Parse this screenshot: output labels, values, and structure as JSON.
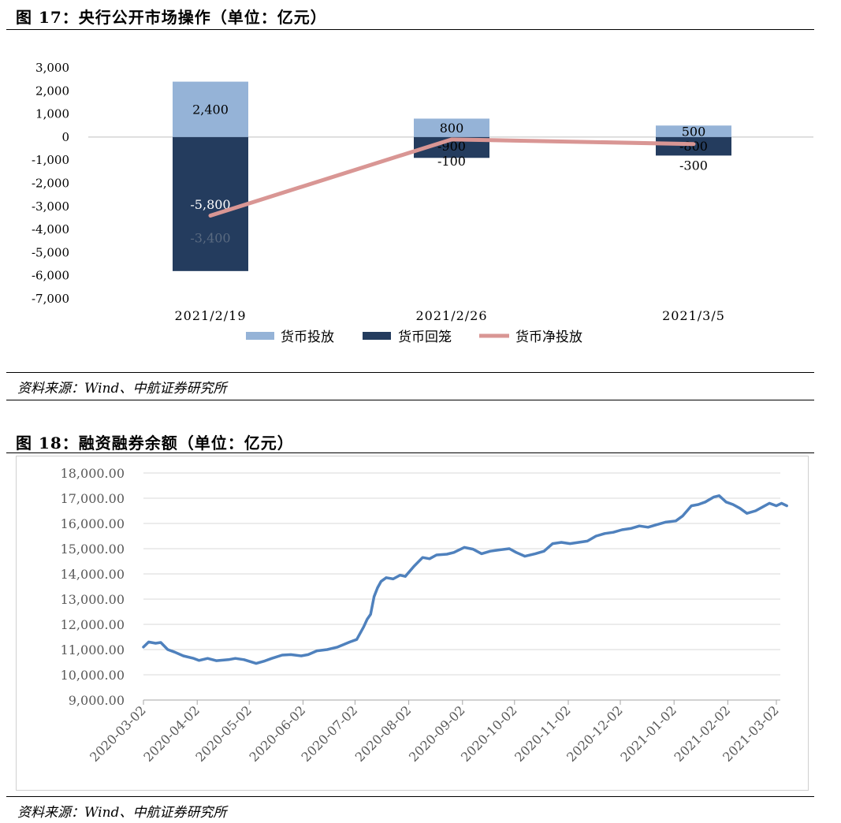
{
  "figure17": {
    "title": "图 17：央行公开市场操作（单位：亿元）",
    "source": "资料来源：Wind、中航证券研究所",
    "chart_data": {
      "type": "bar",
      "categories": [
        "2021/2/19",
        "2021/2/26",
        "2021/3/5"
      ],
      "series": [
        {
          "name": "货币投放",
          "values": [
            2400,
            800,
            500
          ],
          "labels": [
            "2,400",
            "800",
            "500"
          ],
          "color": "#95b3d7"
        },
        {
          "name": "货币回笼",
          "values": [
            -5800,
            -900,
            -800
          ],
          "labels": [
            "-5,800",
            "-900",
            "-800"
          ],
          "color": "#243c5e"
        },
        {
          "name": "货币净投放",
          "values": [
            -3400,
            -100,
            -300
          ],
          "labels": [
            "-3,400",
            "-100",
            "-300"
          ],
          "color": "#d99694",
          "kind": "line"
        }
      ],
      "yticks": [
        "3,000",
        "2,000",
        "1,000",
        "0",
        "-1,000",
        "-2,000",
        "-3,000",
        "-4,000",
        "-5,000",
        "-6,000",
        "-7,000"
      ],
      "ylim": [
        -7000,
        3000
      ],
      "legend_position": "bottom"
    }
  },
  "figure18": {
    "title": "图 18：融资融券余额（单位：亿元）",
    "source": "资料来源：Wind、中航证券研究所",
    "chart_data": {
      "type": "line",
      "series_color": "#4f81bd",
      "grid": true,
      "ylim": [
        9000,
        18000
      ],
      "yticks": [
        "18,000.00",
        "17,000.00",
        "16,000.00",
        "15,000.00",
        "14,000.00",
        "13,000.00",
        "12,000.00",
        "11,000.00",
        "10,000.00",
        "9,000.00"
      ],
      "xticks": [
        "2020-03-02",
        "2020-04-02",
        "2020-05-02",
        "2020-06-02",
        "2020-07-02",
        "2020-08-02",
        "2020-09-02",
        "2020-10-02",
        "2020-11-02",
        "2020-12-02",
        "2021-01-02",
        "2021-02-02",
        "2021-03-02"
      ],
      "points": [
        [
          "2020-03-02",
          11100
        ],
        [
          "2020-03-05",
          11300
        ],
        [
          "2020-03-09",
          11250
        ],
        [
          "2020-03-12",
          11280
        ],
        [
          "2020-03-16",
          11000
        ],
        [
          "2020-03-20",
          10900
        ],
        [
          "2020-03-25",
          10750
        ],
        [
          "2020-03-31",
          10650
        ],
        [
          "2020-04-03",
          10570
        ],
        [
          "2020-04-08",
          10650
        ],
        [
          "2020-04-13",
          10560
        ],
        [
          "2020-04-20",
          10600
        ],
        [
          "2020-04-24",
          10650
        ],
        [
          "2020-04-29",
          10600
        ],
        [
          "2020-05-06",
          10450
        ],
        [
          "2020-05-11",
          10550
        ],
        [
          "2020-05-15",
          10650
        ],
        [
          "2020-05-21",
          10780
        ],
        [
          "2020-05-26",
          10800
        ],
        [
          "2020-06-01",
          10750
        ],
        [
          "2020-06-05",
          10800
        ],
        [
          "2020-06-10",
          10950
        ],
        [
          "2020-06-16",
          11000
        ],
        [
          "2020-06-22",
          11100
        ],
        [
          "2020-06-29",
          11300
        ],
        [
          "2020-07-03",
          11400
        ],
        [
          "2020-07-07",
          11900
        ],
        [
          "2020-07-09",
          12200
        ],
        [
          "2020-07-11",
          12400
        ],
        [
          "2020-07-13",
          13100
        ],
        [
          "2020-07-15",
          13450
        ],
        [
          "2020-07-17",
          13700
        ],
        [
          "2020-07-20",
          13850
        ],
        [
          "2020-07-24",
          13800
        ],
        [
          "2020-07-28",
          13950
        ],
        [
          "2020-07-31",
          13900
        ],
        [
          "2020-08-05",
          14300
        ],
        [
          "2020-08-10",
          14650
        ],
        [
          "2020-08-14",
          14600
        ],
        [
          "2020-08-18",
          14750
        ],
        [
          "2020-08-24",
          14780
        ],
        [
          "2020-08-28",
          14850
        ],
        [
          "2020-09-03",
          15050
        ],
        [
          "2020-09-08",
          14980
        ],
        [
          "2020-09-13",
          14800
        ],
        [
          "2020-09-18",
          14900
        ],
        [
          "2020-09-23",
          14950
        ],
        [
          "2020-09-29",
          15000
        ],
        [
          "2020-10-03",
          14850
        ],
        [
          "2020-10-08",
          14700
        ],
        [
          "2020-10-14",
          14800
        ],
        [
          "2020-10-19",
          14900
        ],
        [
          "2020-10-24",
          15200
        ],
        [
          "2020-10-29",
          15250
        ],
        [
          "2020-11-03",
          15200
        ],
        [
          "2020-11-08",
          15250
        ],
        [
          "2020-11-13",
          15300
        ],
        [
          "2020-11-18",
          15500
        ],
        [
          "2020-11-23",
          15600
        ],
        [
          "2020-11-28",
          15650
        ],
        [
          "2020-12-03",
          15750
        ],
        [
          "2020-12-08",
          15800
        ],
        [
          "2020-12-13",
          15900
        ],
        [
          "2020-12-18",
          15850
        ],
        [
          "2020-12-23",
          15950
        ],
        [
          "2020-12-28",
          16050
        ],
        [
          "2021-01-03",
          16100
        ],
        [
          "2021-01-07",
          16300
        ],
        [
          "2021-01-12",
          16700
        ],
        [
          "2021-01-16",
          16750
        ],
        [
          "2021-01-20",
          16850
        ],
        [
          "2021-01-25",
          17050
        ],
        [
          "2021-01-28",
          17100
        ],
        [
          "2021-02-01",
          16850
        ],
        [
          "2021-02-05",
          16750
        ],
        [
          "2021-02-09",
          16600
        ],
        [
          "2021-02-13",
          16400
        ],
        [
          "2021-02-18",
          16500
        ],
        [
          "2021-02-22",
          16650
        ],
        [
          "2021-02-26",
          16800
        ],
        [
          "2021-03-02",
          16700
        ],
        [
          "2021-03-05",
          16800
        ],
        [
          "2021-03-08",
          16700
        ]
      ]
    }
  }
}
